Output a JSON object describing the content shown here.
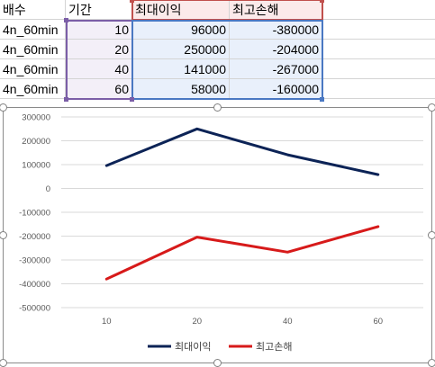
{
  "sheet": {
    "headers": [
      "배수",
      "기간",
      "최대이익",
      "최고손해"
    ],
    "rows": [
      [
        "4n_60min",
        "10",
        "96000",
        "-380000"
      ],
      [
        "4n_60min",
        "20",
        "250000",
        "-204000"
      ],
      [
        "4n_60min",
        "40",
        "141000",
        "-267000"
      ],
      [
        "4n_60min",
        "60",
        "58000",
        "-160000"
      ]
    ],
    "colors": {
      "purple": "#7b5ea7",
      "red": "#c0504d",
      "blue": "#4a78c2"
    }
  },
  "chart_data": {
    "type": "line",
    "categories": [
      "10",
      "20",
      "40",
      "60"
    ],
    "series": [
      {
        "name": "최대이익",
        "values": [
          96000,
          250000,
          141000,
          58000
        ],
        "color": "#0c2356"
      },
      {
        "name": "최고손해",
        "values": [
          -380000,
          -204000,
          -267000,
          -160000
        ],
        "color": "#d71a1a"
      }
    ],
    "ylim": [
      -500000,
      300000
    ],
    "yticks": [
      "300000",
      "200000",
      "100000",
      "0",
      "-100000",
      "-200000",
      "-300000",
      "-400000",
      "-500000"
    ],
    "ytick_values": [
      300000,
      200000,
      100000,
      0,
      -100000,
      -200000,
      -300000,
      -400000,
      -500000
    ],
    "grid": true,
    "legend_position": "bottom",
    "title": "",
    "xlabel": "",
    "ylabel": ""
  }
}
